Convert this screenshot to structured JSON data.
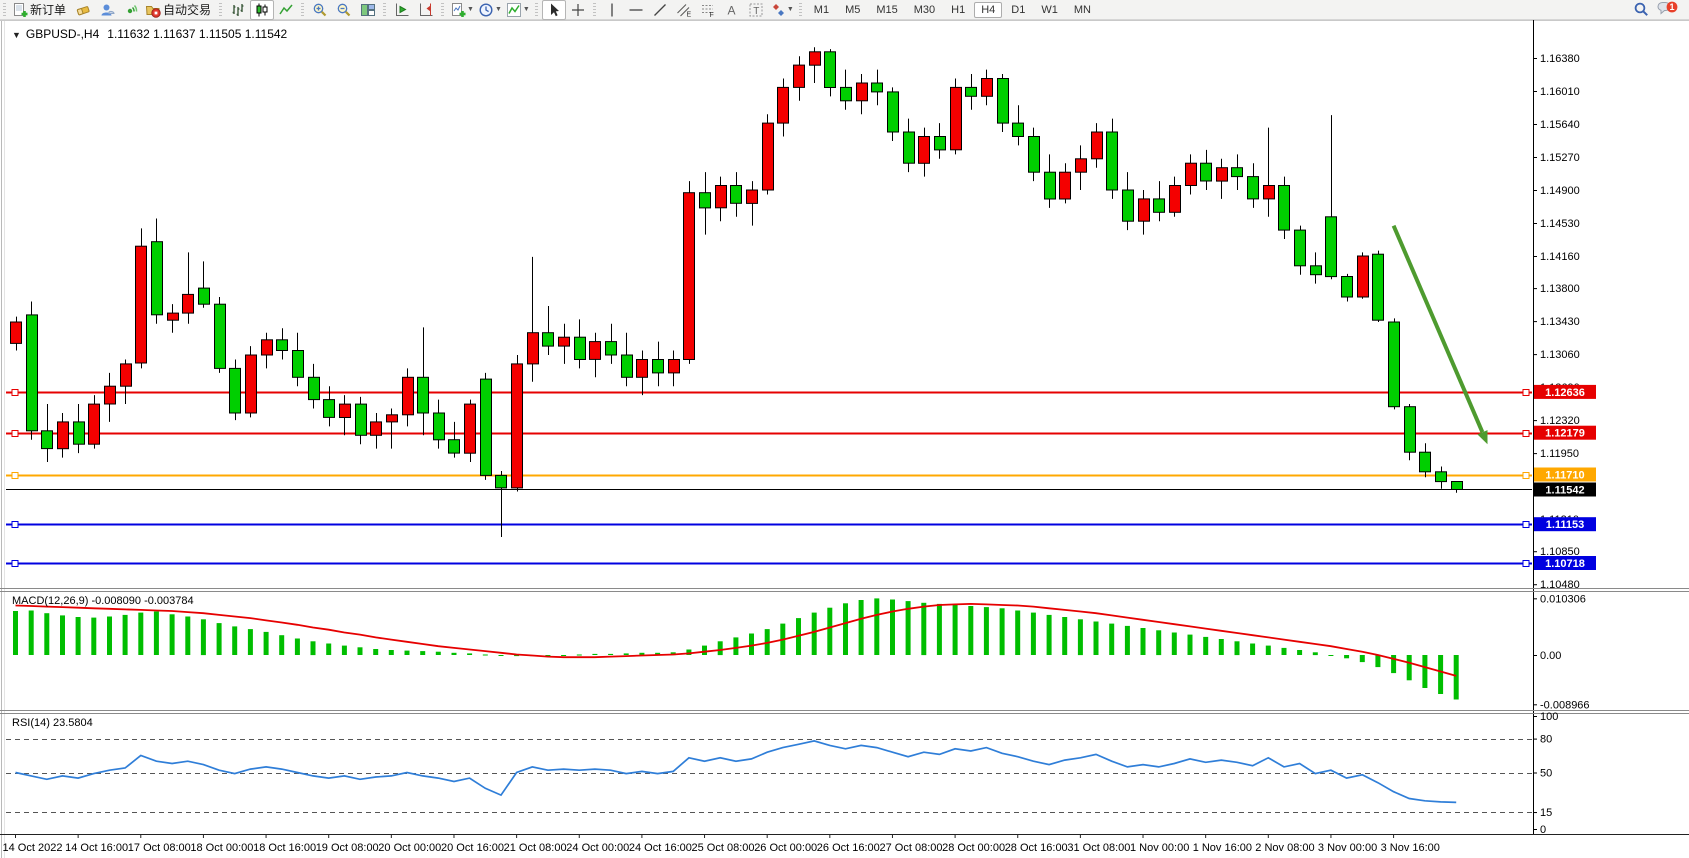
{
  "toolbar": {
    "new_order_label": "新订单",
    "auto_trading_label": "自动交易",
    "timeframes": [
      "M1",
      "M5",
      "M15",
      "M30",
      "H1",
      "H4",
      "D1",
      "W1",
      "MN"
    ],
    "active_timeframe": "H4",
    "notification_count": "1"
  },
  "chart": {
    "symbol_period": "GBPUSD-,H4",
    "ohlc": "1.11632 1.11637 1.11505 1.11542"
  },
  "indicators": {
    "macd_label": "MACD(12,26,9) -0.008090 -0.003784",
    "rsi_label": "RSI(14) 23.5804"
  },
  "price_axis": {
    "ticks": [
      "1.16380",
      "1.16010",
      "1.15640",
      "1.15270",
      "1.14900",
      "1.14530",
      "1.14160",
      "1.13800",
      "1.13430",
      "1.13060",
      "1.12690",
      "1.12320",
      "1.11950",
      "1.11580",
      "1.11210",
      "1.10850",
      "1.10480"
    ],
    "macd_ticks": [
      "0.010306",
      "0.00",
      "-0.008966"
    ],
    "rsi_ticks": [
      "100",
      "80",
      "50",
      "15",
      "0"
    ]
  },
  "levels": [
    {
      "label": "1.12636",
      "price": 1.12636,
      "color": "#e60000",
      "width": 2,
      "markers": true
    },
    {
      "label": "1.12179",
      "price": 1.12179,
      "color": "#e60000",
      "width": 2,
      "markers": true
    },
    {
      "label": "1.11710",
      "price": 1.1171,
      "color": "#ffa800",
      "width": 2,
      "markers": true
    },
    {
      "label": "1.11542",
      "price": 1.11542,
      "color": "#000000",
      "width": 1,
      "markers": false
    },
    {
      "label": "1.11153",
      "price": 1.11153,
      "color": "#0000e0",
      "width": 2,
      "markers": true
    },
    {
      "label": "1.10718",
      "price": 1.10718,
      "color": "#0000e0",
      "width": 2,
      "markers": true
    }
  ],
  "time_axis": [
    "14 Oct 2022",
    "14 Oct 16:00",
    "17 Oct 08:00",
    "18 Oct 00:00",
    "18 Oct 16:00",
    "19 Oct 08:00",
    "20 Oct 00:00",
    "20 Oct 16:00",
    "21 Oct 08:00",
    "24 Oct 00:00",
    "24 Oct 16:00",
    "25 Oct 08:00",
    "26 Oct 00:00",
    "26 Oct 16:00",
    "27 Oct 08:00",
    "28 Oct 00:00",
    "28 Oct 16:00",
    "31 Oct 08:00",
    "1 Nov 00:00",
    "1 Nov 16:00",
    "2 Nov 08:00",
    "3 Nov 00:00",
    "3 Nov 16:00"
  ],
  "chart_data": [
    {
      "type": "candlestick",
      "symbol": "GBPUSD",
      "timeframe": "H4",
      "bull_color": "#f40000",
      "bear_color": "#00cf00",
      "wick_color": "#000000",
      "ylim": [
        1.1048,
        1.1638
      ],
      "candles": [
        [
          1.1318,
          1.1348,
          1.131,
          1.1342
        ],
        [
          1.135,
          1.1365,
          1.121,
          1.122
        ],
        [
          1.122,
          1.125,
          1.1185,
          1.12
        ],
        [
          1.12,
          1.124,
          1.119,
          1.123
        ],
        [
          1.123,
          1.125,
          1.1195,
          1.1205
        ],
        [
          1.1205,
          1.126,
          1.12,
          1.125
        ],
        [
          1.125,
          1.1285,
          1.123,
          1.127
        ],
        [
          1.127,
          1.13,
          1.125,
          1.1295
        ],
        [
          1.1296,
          1.1447,
          1.129,
          1.1427
        ],
        [
          1.1432,
          1.1458,
          1.134,
          1.135
        ],
        [
          1.1344,
          1.1362,
          1.133,
          1.1352
        ],
        [
          1.1352,
          1.142,
          1.134,
          1.1373
        ],
        [
          1.138,
          1.141,
          1.1358,
          1.1362
        ],
        [
          1.1362,
          1.137,
          1.1285,
          1.129
        ],
        [
          1.129,
          1.13,
          1.1232,
          1.124
        ],
        [
          1.124,
          1.1315,
          1.1235,
          1.1305
        ],
        [
          1.1305,
          1.133,
          1.129,
          1.1322
        ],
        [
          1.1322,
          1.1335,
          1.13,
          1.131
        ],
        [
          1.131,
          1.133,
          1.127,
          1.128
        ],
        [
          1.128,
          1.1295,
          1.1245,
          1.1255
        ],
        [
          1.1255,
          1.127,
          1.1225,
          1.1235
        ],
        [
          1.1235,
          1.126,
          1.1215,
          1.125
        ],
        [
          1.125,
          1.1258,
          1.1205,
          1.1215
        ],
        [
          1.1215,
          1.124,
          1.12,
          1.123
        ],
        [
          1.123,
          1.1245,
          1.12,
          1.1238
        ],
        [
          1.1238,
          1.129,
          1.1225,
          1.128
        ],
        [
          1.128,
          1.1336,
          1.1215,
          1.124
        ],
        [
          1.124,
          1.1255,
          1.12,
          1.121
        ],
        [
          1.121,
          1.123,
          1.119,
          1.1195
        ],
        [
          1.1195,
          1.1255,
          1.1185,
          1.125
        ],
        [
          1.1278,
          1.1285,
          1.1165,
          1.117
        ],
        [
          1.117,
          1.1175,
          1.1101,
          1.1156
        ],
        [
          1.1156,
          1.1305,
          1.1152,
          1.1295
        ],
        [
          1.1295,
          1.1415,
          1.1275,
          1.133
        ],
        [
          1.133,
          1.136,
          1.1305,
          1.1315
        ],
        [
          1.1315,
          1.134,
          1.1295,
          1.1325
        ],
        [
          1.1325,
          1.1345,
          1.129,
          1.13
        ],
        [
          1.13,
          1.133,
          1.128,
          1.132
        ],
        [
          1.132,
          1.134,
          1.1295,
          1.1305
        ],
        [
          1.1305,
          1.133,
          1.127,
          1.128
        ],
        [
          1.128,
          1.131,
          1.126,
          1.13
        ],
        [
          1.13,
          1.132,
          1.127,
          1.1285
        ],
        [
          1.1285,
          1.131,
          1.127,
          1.13
        ],
        [
          1.13,
          1.15,
          1.1295,
          1.1487
        ],
        [
          1.1487,
          1.151,
          1.144,
          1.147
        ],
        [
          1.147,
          1.1505,
          1.1455,
          1.1495
        ],
        [
          1.1495,
          1.151,
          1.146,
          1.1475
        ],
        [
          1.1475,
          1.15,
          1.145,
          1.149
        ],
        [
          1.149,
          1.1575,
          1.1485,
          1.1565
        ],
        [
          1.1565,
          1.1615,
          1.155,
          1.1605
        ],
        [
          1.1605,
          1.164,
          1.159,
          1.163
        ],
        [
          1.163,
          1.165,
          1.161,
          1.1645
        ],
        [
          1.1645,
          1.1648,
          1.1595,
          1.1605
        ],
        [
          1.1605,
          1.1625,
          1.158,
          1.159
        ],
        [
          1.159,
          1.162,
          1.1575,
          1.161
        ],
        [
          1.161,
          1.1625,
          1.1585,
          1.16
        ],
        [
          1.16,
          1.1605,
          1.1545,
          1.1555
        ],
        [
          1.1555,
          1.157,
          1.151,
          1.152
        ],
        [
          1.152,
          1.156,
          1.1505,
          1.155
        ],
        [
          1.155,
          1.1565,
          1.1525,
          1.1535
        ],
        [
          1.1535,
          1.1615,
          1.153,
          1.1605
        ],
        [
          1.1605,
          1.162,
          1.158,
          1.1595
        ],
        [
          1.1595,
          1.1625,
          1.1585,
          1.1615
        ],
        [
          1.1615,
          1.162,
          1.1555,
          1.1565
        ],
        [
          1.1565,
          1.1585,
          1.154,
          1.155
        ],
        [
          1.155,
          1.156,
          1.15,
          1.151
        ],
        [
          1.151,
          1.153,
          1.147,
          1.148
        ],
        [
          1.148,
          1.152,
          1.1475,
          1.151
        ],
        [
          1.151,
          1.154,
          1.149,
          1.1525
        ],
        [
          1.1525,
          1.1565,
          1.1515,
          1.1555
        ],
        [
          1.1555,
          1.157,
          1.148,
          1.149
        ],
        [
          1.149,
          1.151,
          1.1445,
          1.1455
        ],
        [
          1.1455,
          1.149,
          1.144,
          1.148
        ],
        [
          1.148,
          1.15,
          1.1455,
          1.1465
        ],
        [
          1.1465,
          1.1505,
          1.146,
          1.1495
        ],
        [
          1.1495,
          1.153,
          1.1485,
          1.152
        ],
        [
          1.152,
          1.1535,
          1.149,
          1.15
        ],
        [
          1.15,
          1.1525,
          1.148,
          1.1515
        ],
        [
          1.1515,
          1.153,
          1.149,
          1.1505
        ],
        [
          1.1505,
          1.152,
          1.147,
          1.148
        ],
        [
          1.148,
          1.156,
          1.146,
          1.1495
        ],
        [
          1.1495,
          1.1505,
          1.1435,
          1.1445
        ],
        [
          1.1445,
          1.145,
          1.1395,
          1.1405
        ],
        [
          1.1405,
          1.142,
          1.1385,
          1.1395
        ],
        [
          1.146,
          1.1574,
          1.139,
          1.1393
        ],
        [
          1.1393,
          1.1396,
          1.1365,
          1.137
        ],
        [
          1.137,
          1.142,
          1.1368,
          1.1416
        ],
        [
          1.1418,
          1.1422,
          1.1342,
          1.1344
        ],
        [
          1.1342,
          1.1346,
          1.1244,
          1.1247
        ],
        [
          1.1247,
          1.125,
          1.1187,
          1.1196
        ],
        [
          1.1196,
          1.1206,
          1.1168,
          1.1174
        ],
        [
          1.1174,
          1.118,
          1.1155,
          1.1163
        ],
        [
          1.11632,
          1.11637,
          1.11505,
          1.11542
        ]
      ]
    },
    {
      "type": "bar",
      "name": "MACD histogram",
      "color": "#00be00",
      "ylim": [
        -0.008966,
        0.010306
      ],
      "values": [
        0.008,
        0.0081,
        0.0076,
        0.0072,
        0.0069,
        0.0068,
        0.007,
        0.0073,
        0.0077,
        0.0079,
        0.0074,
        0.007,
        0.0065,
        0.0058,
        0.0052,
        0.0047,
        0.0042,
        0.0036,
        0.003,
        0.0025,
        0.0021,
        0.0017,
        0.0014,
        0.0011,
        0.0009,
        0.0008,
        0.0007,
        0.0006,
        0.0004,
        0.0003,
        0.0001,
        -0.0001,
        -0.0002,
        -0.0002,
        -0.0001,
        0.0,
        0.0001,
        0.0002,
        0.0002,
        0.0003,
        0.0004,
        0.0004,
        0.0005,
        0.001,
        0.0017,
        0.0025,
        0.0032,
        0.0039,
        0.0047,
        0.0057,
        0.0067,
        0.0077,
        0.0086,
        0.0094,
        0.01,
        0.0103,
        0.0101,
        0.0098,
        0.0095,
        0.0093,
        0.0091,
        0.0089,
        0.0087,
        0.0085,
        0.0081,
        0.0077,
        0.0073,
        0.0069,
        0.0065,
        0.0061,
        0.0057,
        0.0053,
        0.0049,
        0.0045,
        0.0041,
        0.0037,
        0.0033,
        0.0029,
        0.0025,
        0.0021,
        0.0017,
        0.0013,
        0.0009,
        0.0005,
        0.0,
        -0.0006,
        -0.0013,
        -0.0022,
        -0.0033,
        -0.0046,
        -0.006,
        -0.0071,
        -0.0081
      ]
    },
    {
      "type": "line",
      "name": "MACD signal",
      "color": "#e60000",
      "values": [
        0.009,
        0.0089,
        0.0088,
        0.0087,
        0.0086,
        0.0085,
        0.0084,
        0.0083,
        0.0082,
        0.0081,
        0.008,
        0.0078,
        0.0076,
        0.0073,
        0.007,
        0.0067,
        0.0063,
        0.0059,
        0.0055,
        0.005,
        0.0046,
        0.0041,
        0.0037,
        0.0032,
        0.0028,
        0.0024,
        0.002,
        0.0016,
        0.0013,
        0.001,
        0.0007,
        0.0004,
        0.0001,
        -0.0001,
        -0.0003,
        -0.0004,
        -0.0004,
        -0.0004,
        -0.0003,
        -0.0002,
        -0.0001,
        0.0,
        0.0001,
        0.0003,
        0.0006,
        0.0009,
        0.0013,
        0.0017,
        0.0022,
        0.0028,
        0.0035,
        0.0042,
        0.005,
        0.0058,
        0.0066,
        0.0073,
        0.0079,
        0.0084,
        0.0088,
        0.0091,
        0.0092,
        0.0093,
        0.0092,
        0.0091,
        0.009,
        0.0088,
        0.0085,
        0.0082,
        0.0079,
        0.0076,
        0.0072,
        0.0068,
        0.0064,
        0.006,
        0.0056,
        0.0052,
        0.0048,
        0.0044,
        0.004,
        0.0036,
        0.0032,
        0.0028,
        0.0024,
        0.002,
        0.0016,
        0.0011,
        0.0006,
        0.0,
        -0.0007,
        -0.0014,
        -0.0022,
        -0.003,
        -0.0038
      ]
    },
    {
      "type": "line",
      "name": "RSI",
      "color": "#2f7ed8",
      "levels": [
        80,
        50,
        15
      ],
      "ylim": [
        0,
        100
      ],
      "values": [
        50,
        47,
        44,
        47,
        45,
        49,
        52,
        54,
        65,
        60,
        58,
        60,
        57,
        52,
        49,
        53,
        55,
        53,
        50,
        47,
        45,
        47,
        44,
        46,
        47,
        50,
        47,
        45,
        42,
        45,
        36,
        30,
        50,
        55,
        52,
        53,
        52,
        53,
        52,
        49,
        51,
        49,
        51,
        63,
        60,
        63,
        60,
        62,
        68,
        72,
        75,
        78,
        74,
        71,
        74,
        72,
        68,
        64,
        68,
        66,
        71,
        69,
        72,
        67,
        64,
        60,
        57,
        61,
        63,
        66,
        60,
        55,
        57,
        55,
        58,
        62,
        59,
        61,
        59,
        56,
        63,
        55,
        58,
        49,
        52,
        45,
        48,
        41,
        33,
        27,
        25,
        24,
        23.58
      ]
    }
  ],
  "annotations": {
    "trend_arrow": {
      "from_bar": 88,
      "from_price": 1.145,
      "to_bar": 94,
      "to_price": 1.1205,
      "color": "#4e9b2f",
      "width": 4
    }
  }
}
